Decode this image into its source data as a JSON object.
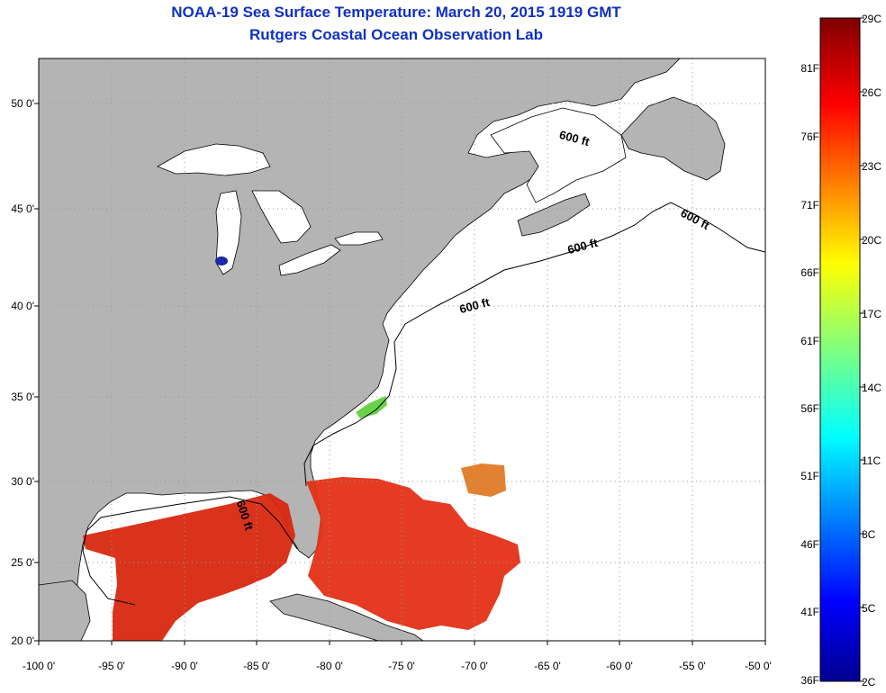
{
  "title": {
    "line1": "NOAA-19 Sea Surface Temperature:  March 20, 2015 1919 GMT",
    "line2": "Rutgers Coastal Ocean Observation Lab"
  },
  "map": {
    "lat_ticks": [
      "50 0'",
      "45 0'",
      "40 0'",
      "35 0'",
      "30 0'",
      "25 0'",
      "20 0'"
    ],
    "lon_ticks": [
      "-100 0'",
      "-95 0'",
      "-90 0'",
      "-85 0'",
      "-80 0'",
      "-75 0'",
      "-70 0'",
      "-65 0'",
      "-60 0'",
      "-55 0'",
      "-50 0'"
    ],
    "lat_range": [
      20,
      52.5
    ],
    "lon_range": [
      -100,
      -50
    ],
    "isobath_labels": [
      "600 ft",
      "600 ft",
      "600 ft",
      "600 ft",
      "600 ft"
    ],
    "colors": {
      "land": "#b4b4b4",
      "ocean_nodata": "#ffffff",
      "warm_water": "#e62810"
    }
  },
  "colorbar": {
    "fahrenheit": [
      "81F",
      "76F",
      "71F",
      "66F",
      "61F",
      "56F",
      "51F",
      "46F",
      "41F",
      "36F"
    ],
    "celsius": [
      "29C",
      "26C",
      "23C",
      "20C",
      "17C",
      "14C",
      "11C",
      "8C",
      "5C",
      "2C"
    ],
    "range_c": [
      2,
      29
    ]
  }
}
